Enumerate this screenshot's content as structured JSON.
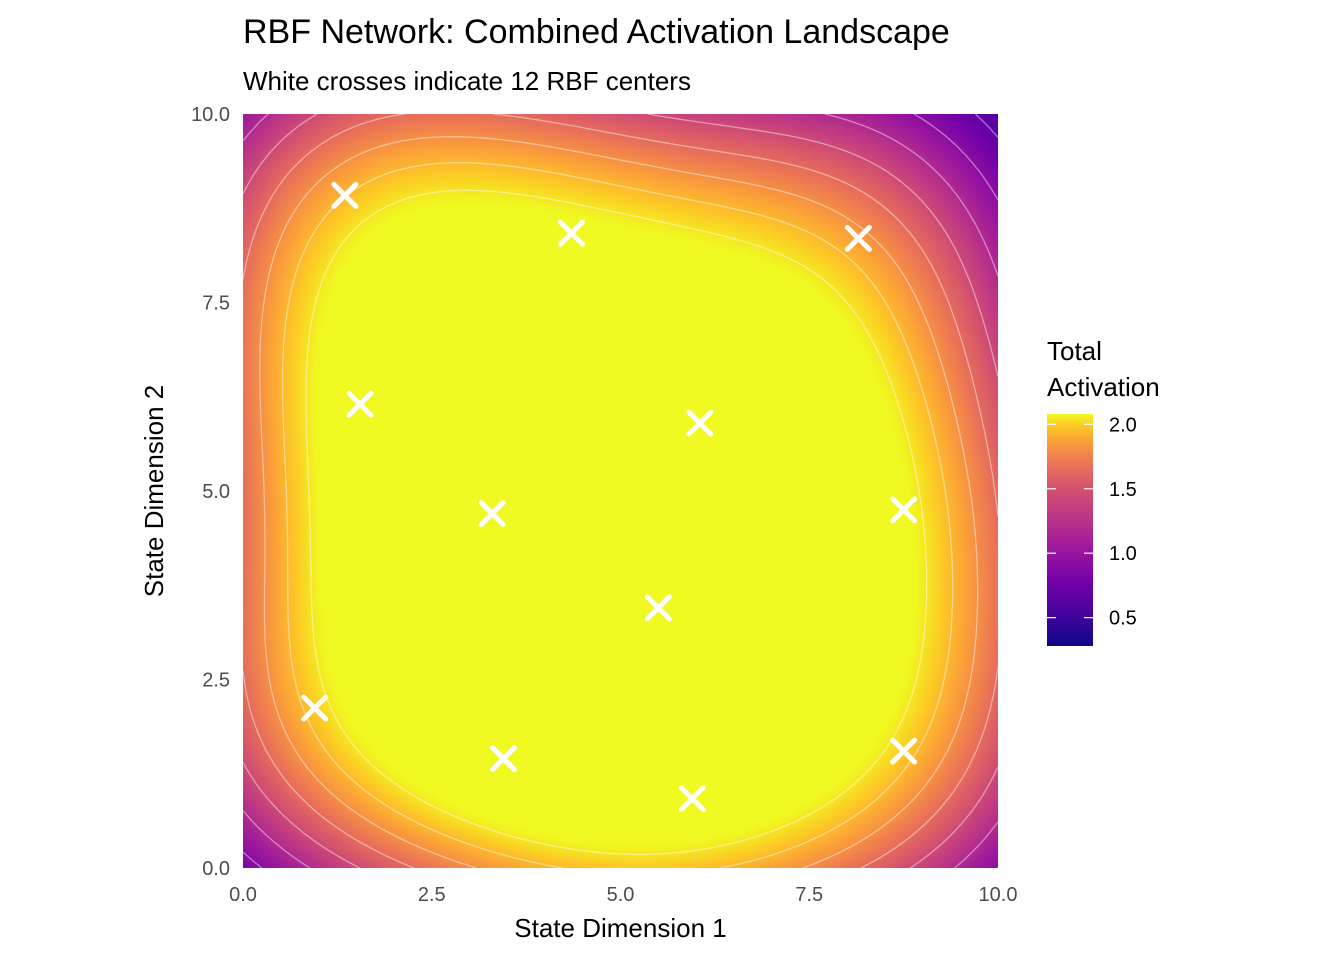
{
  "chart_data": {
    "type": "heatmap",
    "title": "RBF Network: Combined Activation Landscape",
    "subtitle": "White crosses indicate 12 RBF centers",
    "xlabel": "State Dimension 1",
    "ylabel": "State Dimension 2",
    "xlim": [
      0,
      10
    ],
    "ylim": [
      0,
      10
    ],
    "x_ticks": [
      "0.0",
      "2.5",
      "5.0",
      "7.5",
      "10.0"
    ],
    "y_ticks": [
      "0.0",
      "2.5",
      "5.0",
      "7.5",
      "10.0"
    ],
    "x_tick_values": [
      0,
      2.5,
      5,
      7.5,
      10
    ],
    "y_tick_values": [
      0,
      2.5,
      5,
      7.5,
      10
    ],
    "colorscale": "plasma",
    "legend": {
      "title_line1": "Total",
      "title_line2": "Activation",
      "range": [
        0.28,
        2.08
      ],
      "ticks": [
        "0.5",
        "1.0",
        "1.5",
        "2.0"
      ],
      "tick_values": [
        0.5,
        1.0,
        1.5,
        2.0
      ],
      "placement": "right"
    },
    "rbf_width": 2.0,
    "rbf_centers": [
      {
        "x": 1.35,
        "y": 8.92
      },
      {
        "x": 4.35,
        "y": 8.42
      },
      {
        "x": 8.15,
        "y": 8.35
      },
      {
        "x": 1.55,
        "y": 6.15
      },
      {
        "x": 6.05,
        "y": 5.9
      },
      {
        "x": 3.3,
        "y": 4.7
      },
      {
        "x": 8.75,
        "y": 4.75
      },
      {
        "x": 5.5,
        "y": 3.45
      },
      {
        "x": 0.95,
        "y": 2.12
      },
      {
        "x": 3.45,
        "y": 1.45
      },
      {
        "x": 5.95,
        "y": 0.92
      },
      {
        "x": 8.75,
        "y": 1.55
      }
    ]
  }
}
